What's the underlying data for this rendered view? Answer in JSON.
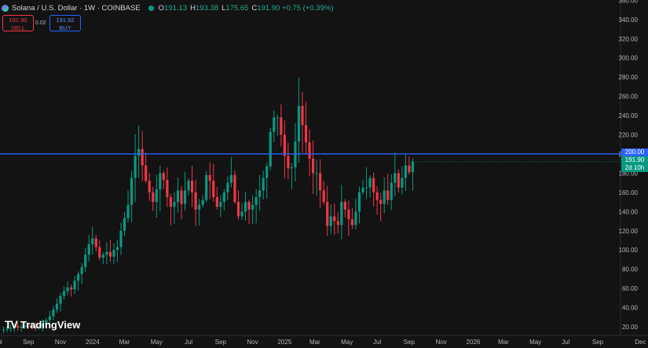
{
  "header": {
    "title": "Solana / U.S. Dollar · 1W · COINBASE",
    "ohlc": [
      {
        "k": "O",
        "v": "191.13"
      },
      {
        "k": "H",
        "v": "193.38"
      },
      {
        "k": "L",
        "v": "175.65"
      },
      {
        "k": "C",
        "v": "191.90 +0.75 (+0.39%)"
      }
    ]
  },
  "trade": {
    "sell_price": "191.90",
    "sell_label": "SELL",
    "spread": "0.02",
    "buy_price": "191.92",
    "buy_label": "BUY"
  },
  "price_tag": {
    "line": "200.00",
    "price": "191.90",
    "countdown": "2d 10h"
  },
  "logo": {
    "text": "TradingView"
  },
  "colors": {
    "up": "#089981",
    "down": "#f23645",
    "line": "#2962ff",
    "background": "#131313"
  },
  "chart_data": {
    "type": "candlestick",
    "y_ticks": [
      "20.00",
      "40.00",
      "60.00",
      "80.00",
      "100.00",
      "120.00",
      "140.00",
      "160.00",
      "180.00",
      "200.00",
      "220.00",
      "240.00",
      "260.00",
      "280.00",
      "300.00",
      "320.00",
      "340.00",
      "360.00"
    ],
    "ylim": [
      5,
      362
    ],
    "x_ticks": [
      {
        "label": "Jul",
        "t": -1.5
      },
      {
        "label": "Sep",
        "t": 7
      },
      {
        "label": "Nov",
        "t": 16
      },
      {
        "label": "2024",
        "t": 25
      },
      {
        "label": "Mar",
        "t": 34
      },
      {
        "label": "May",
        "t": 43
      },
      {
        "label": "Jul",
        "t": 52
      },
      {
        "label": "Sep",
        "t": 61
      },
      {
        "label": "Nov",
        "t": 70
      },
      {
        "label": "2025",
        "t": 79
      },
      {
        "label": "Mar",
        "t": 87.5
      },
      {
        "label": "May",
        "t": 96.5
      },
      {
        "label": "Jul",
        "t": 105
      },
      {
        "label": "Sep",
        "t": 114
      },
      {
        "label": "Nov",
        "t": 123
      },
      {
        "label": "2026",
        "t": 132
      },
      {
        "label": "Mar",
        "t": 140.5
      },
      {
        "label": "May",
        "t": 149.5
      },
      {
        "label": "Jul",
        "t": 158
      },
      {
        "label": "Sep",
        "t": 167
      },
      {
        "label": "Dec",
        "t": 179
      }
    ],
    "horizontal_line": 200,
    "current_price": 191.9,
    "closes": [
      17,
      18,
      19,
      21,
      19,
      20,
      21,
      20,
      21,
      19,
      20,
      23,
      27,
      31,
      38,
      44,
      52,
      57,
      61,
      59,
      68,
      75,
      82,
      95,
      106,
      112,
      103,
      92,
      95,
      98,
      93,
      100,
      103,
      120,
      133,
      147,
      175,
      198,
      205,
      188,
      172,
      160,
      150,
      163,
      180,
      173,
      155,
      145,
      150,
      162,
      148,
      162,
      172,
      160,
      142,
      147,
      152,
      178,
      172,
      155,
      145,
      150,
      160,
      170,
      178,
      150,
      135,
      140,
      150,
      142,
      147,
      155,
      162,
      175,
      187,
      223,
      238,
      238,
      220,
      198,
      185,
      186,
      213,
      250,
      230,
      212,
      195,
      180,
      180,
      162,
      150,
      125,
      135,
      130,
      126,
      150,
      142,
      132,
      126,
      140,
      160,
      165,
      165,
      175,
      160,
      152,
      148,
      162,
      152,
      170,
      180,
      165,
      175,
      188,
      181,
      191.9
    ]
  }
}
